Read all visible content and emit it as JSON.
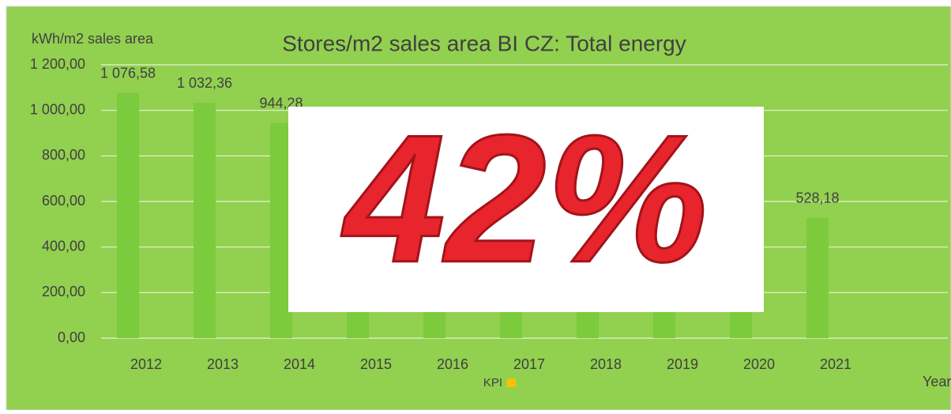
{
  "chart_data": {
    "type": "bar",
    "title": "Stores/m2 sales area BI CZ: Total energy",
    "y_label": "kWh/m2 sales area",
    "x_label": "Year",
    "categories": [
      "2012",
      "2013",
      "2014",
      "2015",
      "2016",
      "2017",
      "2018",
      "2019",
      "2020",
      "2021"
    ],
    "series": [
      {
        "name": "KPI",
        "color": "#7ccb3c",
        "legend_color": "#ffc000",
        "values": [
          1076.58,
          1032.36,
          944.28,
          900,
          850,
          800,
          720,
          660,
          600,
          528.18
        ],
        "value_labels": [
          "1 076,58",
          "1 032,36",
          "944,28",
          null,
          null,
          null,
          null,
          null,
          null,
          "528,18"
        ]
      }
    ],
    "ylim": [
      0,
      1200
    ],
    "yticks": [
      {
        "value": 0,
        "label": "0,00"
      },
      {
        "value": 200,
        "label": "200,00"
      },
      {
        "value": 400,
        "label": "400,00"
      },
      {
        "value": 600,
        "label": "600,00"
      },
      {
        "value": 800,
        "label": "800,00"
      },
      {
        "value": 1000,
        "label": "1 000,00"
      },
      {
        "value": 1200,
        "label": "1 200,00"
      }
    ],
    "grid": true,
    "background": "#92d050",
    "overlay_text": "42%"
  }
}
